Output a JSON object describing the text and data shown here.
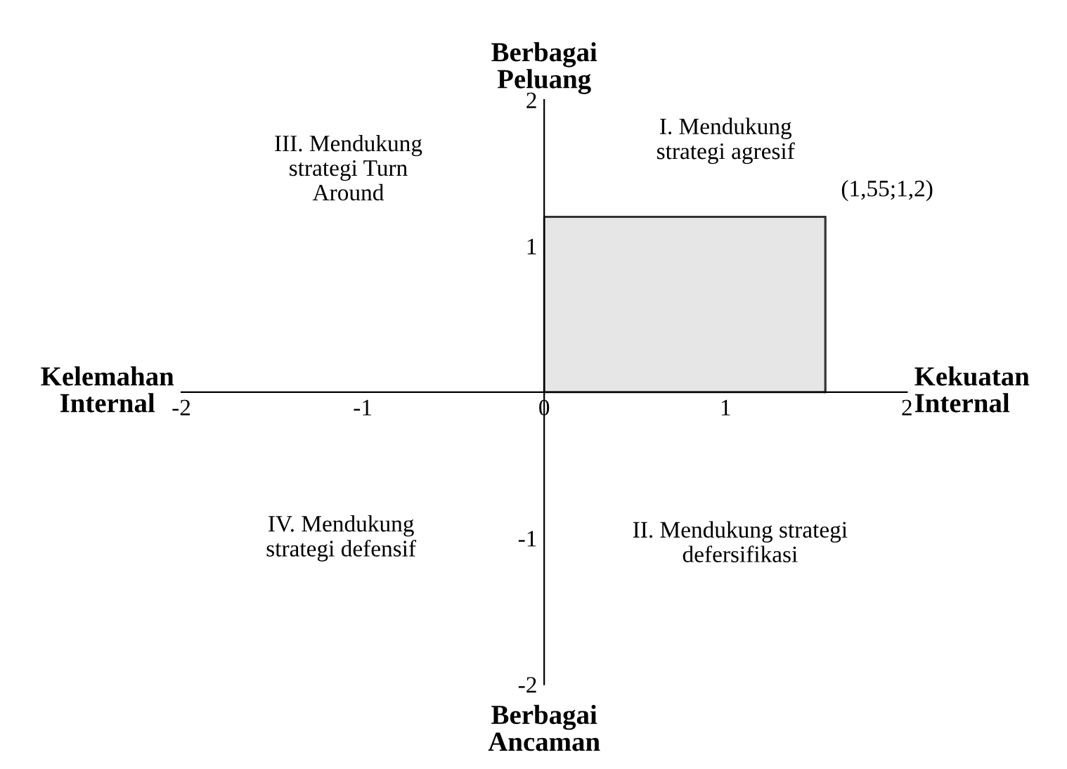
{
  "chart_data": {
    "type": "area",
    "x": [
      0,
      1.55
    ],
    "series": [
      {
        "color": "#e6e6e6",
        "values": [
          1.2,
          1.2
        ]
      }
    ],
    "xlabel": "Kekuatan\nInternal",
    "ylabel": "Berbagai\nPeluang",
    "xlim": [
      -2,
      2
    ],
    "ylim": [
      -2,
      2
    ],
    "xticks": [
      -2,
      -1,
      0,
      1,
      2
    ],
    "yticks": [
      -2,
      -1,
      {
        "value": 0,
        "label": null
      },
      1,
      2
    ],
    "grid": false,
    "legend": false,
    "annotations": [
      {
        "text": "(1,55;1,2)",
        "x": 1.55,
        "y": 1.2
      },
      "Kelemahan\nInternal",
      "Berbagai\nAncaman",
      "I. Mendukung\nstrategi agresif",
      "II. Mendukung strategi\ndefersifikasi",
      "III. Mendukung\nstrategi Turn\nAround",
      "IV. Mendukung\nstrategi defensif"
    ]
  }
}
